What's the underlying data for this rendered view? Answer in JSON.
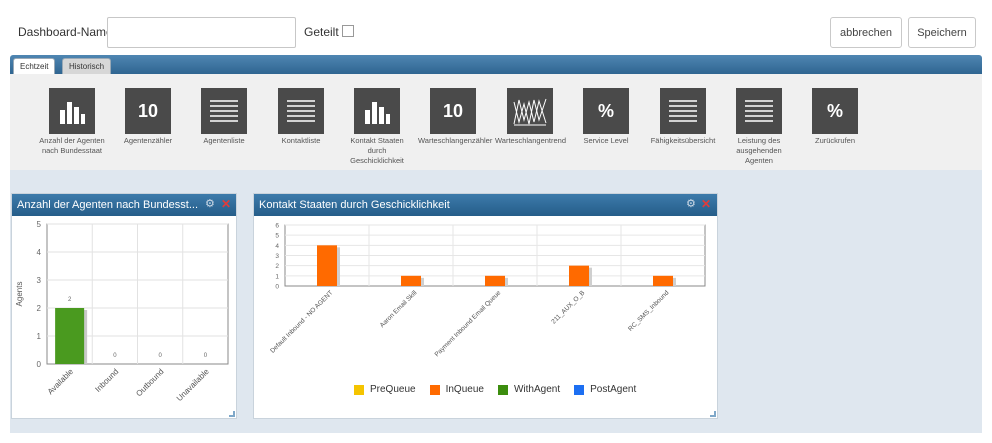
{
  "header": {
    "dashboard_name_label": "Dashboard-Name",
    "dashboard_name_value": "",
    "shared_label": "Geteilt",
    "cancel_label": "abbrechen",
    "save_label": "Speichern"
  },
  "tabs": [
    {
      "label": "Echtzeit",
      "active": true
    },
    {
      "label": "Historisch",
      "active": false
    }
  ],
  "palette": [
    {
      "label": "Anzahl der Agenten nach Bundesstaat",
      "icon": "bar-chart-icon"
    },
    {
      "label": "Agentenzähler",
      "icon": "counter-icon",
      "glyph": "10"
    },
    {
      "label": "Agentenliste",
      "icon": "list-icon"
    },
    {
      "label": "Kontaktliste",
      "icon": "list-icon"
    },
    {
      "label": "Kontakt Staaten durch Geschicklichkeit",
      "icon": "bar-chart-icon"
    },
    {
      "label": "Warteschlangenzähler",
      "icon": "counter-icon",
      "glyph": "10"
    },
    {
      "label": "Warteschlangentrend",
      "icon": "trend-icon"
    },
    {
      "label": "Service Level",
      "icon": "percent-icon",
      "glyph": "%"
    },
    {
      "label": "Fähigkeitsübersicht",
      "icon": "list-icon"
    },
    {
      "label": "Leistung des ausgehenden Agenten",
      "icon": "list-icon"
    },
    {
      "label": "Zurückrufen",
      "icon": "percent-icon",
      "glyph": "%"
    }
  ],
  "widgets": {
    "agents": {
      "title": "Anzahl der Agenten nach Bundesst..."
    },
    "contacts": {
      "title": "Kontakt Staaten durch Geschicklichkeit"
    }
  },
  "chart_data": [
    {
      "type": "bar",
      "categories": [
        "Available",
        "Inbound",
        "Outbound",
        "Unavailable"
      ],
      "values": [
        2,
        0,
        0,
        0
      ],
      "data_labels": [
        "2",
        "0",
        "0",
        "0"
      ],
      "ylabel": "Agents",
      "xlabel": "",
      "ylim": [
        0,
        5
      ],
      "yticks": [
        "0",
        "1",
        "2",
        "3",
        "4",
        "5"
      ],
      "color": "#4a9a1f",
      "grid": true
    },
    {
      "type": "bar",
      "categories": [
        "Default Inbound - NO AGENT",
        "Aaron Email Skill",
        "Payment Inbound Email Queue",
        "211_AUX_O_B",
        "RC_SMS_Inbound"
      ],
      "series": [
        {
          "name": "PreQueue",
          "color": "#f5c400",
          "values": [
            0,
            0,
            0,
            0,
            0
          ]
        },
        {
          "name": "InQueue",
          "color": "#ff6a00",
          "values": [
            4,
            1,
            1,
            2,
            1
          ]
        },
        {
          "name": "WithAgent",
          "color": "#3c8d0e",
          "values": [
            0,
            0,
            0,
            0,
            0
          ]
        },
        {
          "name": "PostAgent",
          "color": "#1d6ff2",
          "values": [
            0,
            0,
            0,
            0,
            0
          ]
        }
      ],
      "ylim": [
        0,
        6
      ],
      "yticks": [
        "0",
        "1",
        "2",
        "3",
        "4",
        "5",
        "6"
      ],
      "xlabel": "",
      "ylabel": "",
      "grid": true,
      "legend": "bottom"
    }
  ]
}
